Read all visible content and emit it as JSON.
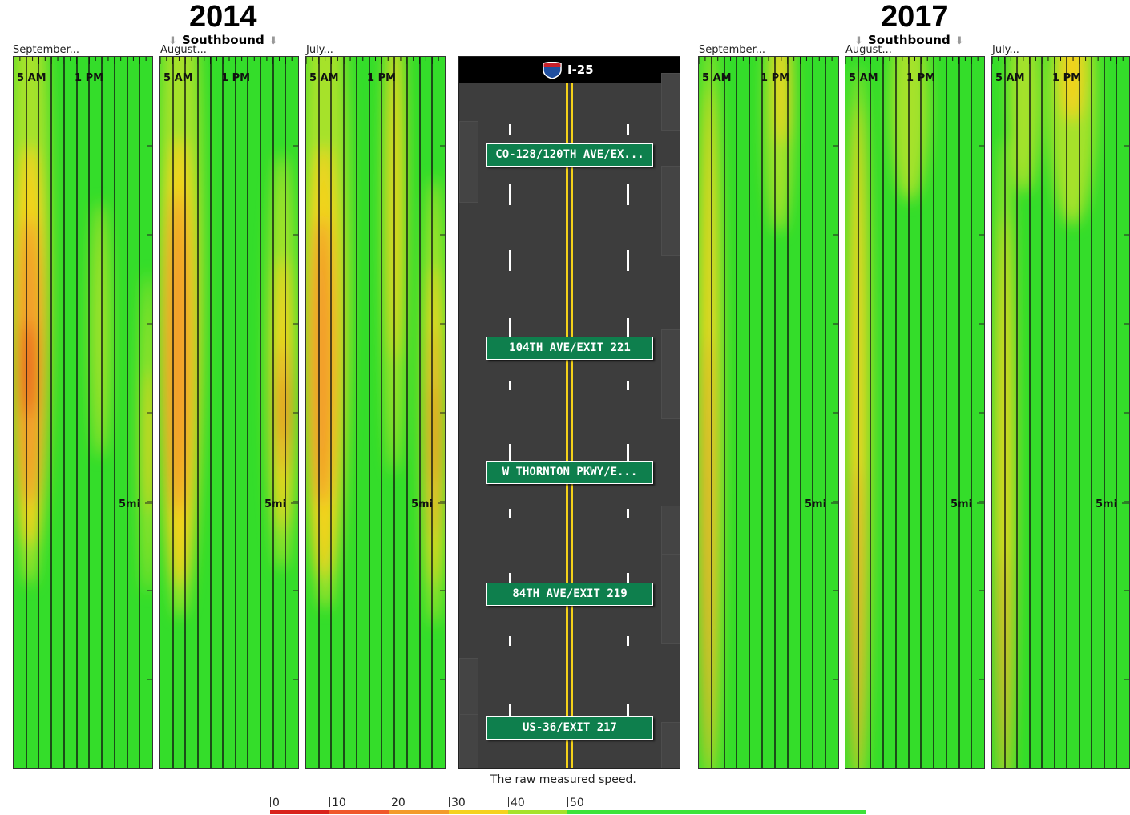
{
  "chart_data": {
    "type": "heatmap",
    "title": "The raw measured speed.",
    "road": "I-25",
    "direction": "Southbound",
    "groups": [
      {
        "year": "2014",
        "direction": "Southbound",
        "panels": [
          {
            "month": "September...",
            "time_labels": [
              "5 AM",
              "1 PM"
            ],
            "distance_label": "5mi"
          },
          {
            "month": "August...",
            "time_labels": [
              "5 AM",
              "1 PM"
            ],
            "distance_label": "5mi"
          },
          {
            "month": "July...",
            "time_labels": [
              "5 AM",
              "1 PM"
            ],
            "distance_label": "5mi"
          }
        ]
      },
      {
        "year": "2017",
        "direction": "Southbound",
        "panels": [
          {
            "month": "September...",
            "time_labels": [
              "5 AM",
              "1 PM"
            ],
            "distance_label": "5mi"
          },
          {
            "month": "August...",
            "time_labels": [
              "5 AM",
              "1 PM"
            ],
            "distance_label": "5mi"
          },
          {
            "month": "July...",
            "time_labels": [
              "5 AM",
              "1 PM"
            ],
            "distance_label": "5mi"
          }
        ]
      }
    ],
    "exits": [
      "CO-128/120TH AVE/EX...",
      "104TH AVE/EXIT 221",
      "W THORNTON PKWY/E...",
      "84TH AVE/EXIT 219",
      "US-36/EXIT 217"
    ],
    "legend": {
      "ticks": [
        "0",
        "10",
        "20",
        "30",
        "40",
        "50"
      ],
      "colors": [
        "#d9231c",
        "#f0582b",
        "#f39b2a",
        "#f5d21e",
        "#a6e22c",
        "#3de33a"
      ]
    }
  },
  "colors": {
    "free_flow": "#34dd2a",
    "slow": "#f5d21e",
    "slower": "#f39b2a",
    "stopped": "#d9231c",
    "sign_green": "#0e7f4d",
    "road": "#3d3d3d"
  },
  "icons": {
    "shield": "interstate-shield-icon",
    "arrow": "down-arrow-icon"
  }
}
